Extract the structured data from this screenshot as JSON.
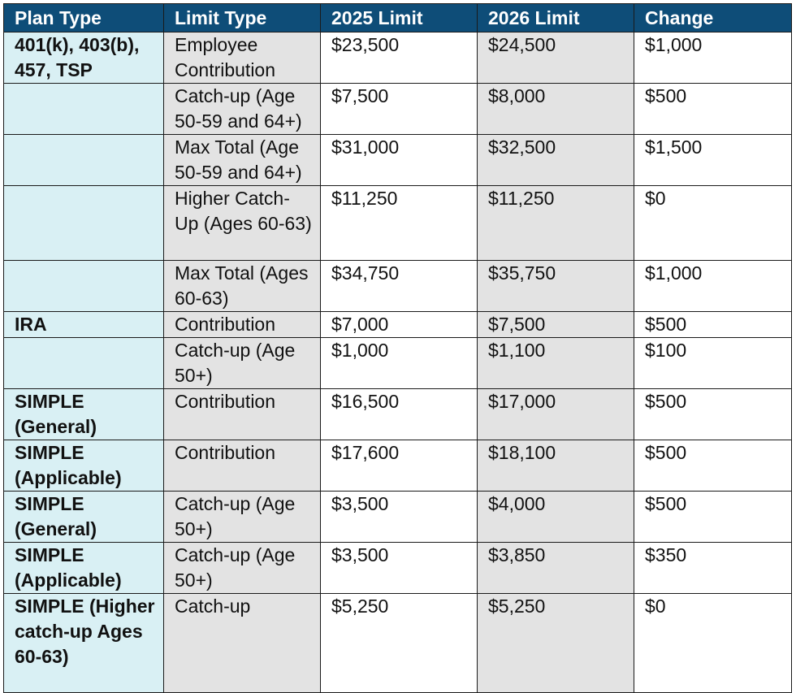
{
  "table": {
    "headers": [
      "Plan Type",
      "Limit Type",
      "2025 Limit",
      "2026 Limit",
      "Change"
    ],
    "rows": [
      {
        "plan": "401(k), 403(b), 457, TSP",
        "limit": "Employee Contribution",
        "y2025": "$23,500",
        "y2026": "$24,500",
        "change": "$1,000"
      },
      {
        "plan": "",
        "limit": "Catch-up (Age 50-59 and 64+)",
        "y2025": "$7,500",
        "y2026": "$8,000",
        "change": "$500"
      },
      {
        "plan": "",
        "limit": "Max Total (Age 50-59 and 64+)",
        "y2025": "$31,000",
        "y2026": "$32,500",
        "change": "$1,500"
      },
      {
        "plan": "",
        "limit": "Higher Catch-Up (Ages 60-63)",
        "y2025": "$11,250",
        "y2026": "$11,250",
        "change": "$0"
      },
      {
        "plan": "",
        "limit": "Max Total (Ages 60-63)",
        "y2025": "$34,750",
        "y2026": "$35,750",
        "change": "$1,000"
      },
      {
        "plan": "IRA",
        "limit": "Contribution",
        "y2025": "$7,000",
        "y2026": "$7,500",
        "change": "$500"
      },
      {
        "plan": "",
        "limit": "Catch-up (Age 50+)",
        "y2025": "$1,000",
        "y2026": "$1,100",
        "change": "$100"
      },
      {
        "plan": "SIMPLE (General)",
        "limit": "Contribution",
        "y2025": "$16,500",
        "y2026": "$17,000",
        "change": "$500"
      },
      {
        "plan": "SIMPLE (Applicable)",
        "limit": "Contribution",
        "y2025": "$17,600",
        "y2026": "$18,100",
        "change": "$500"
      },
      {
        "plan": "SIMPLE (General)",
        "limit": "Catch-up (Age 50+)",
        "y2025": "$3,500",
        "y2026": "$4,000",
        "change": "$500"
      },
      {
        "plan": "SIMPLE (Applicable)",
        "limit": "Catch-up (Age 50+)",
        "y2025": "$3,500",
        "y2026": "$3,850",
        "change": "$350"
      },
      {
        "plan": "SIMPLE (Higher catch-up Ages 60-63)",
        "limit": "Catch-up",
        "y2025": "$5,250",
        "y2026": "$5,250",
        "change": "$0"
      }
    ]
  },
  "colors": {
    "header_bg": "#0e4d78",
    "header_text": "#ffffff",
    "plan_bg": "#d9f0f4",
    "shaded_bg": "#e3e3e3",
    "border": "#1a1a1a"
  }
}
